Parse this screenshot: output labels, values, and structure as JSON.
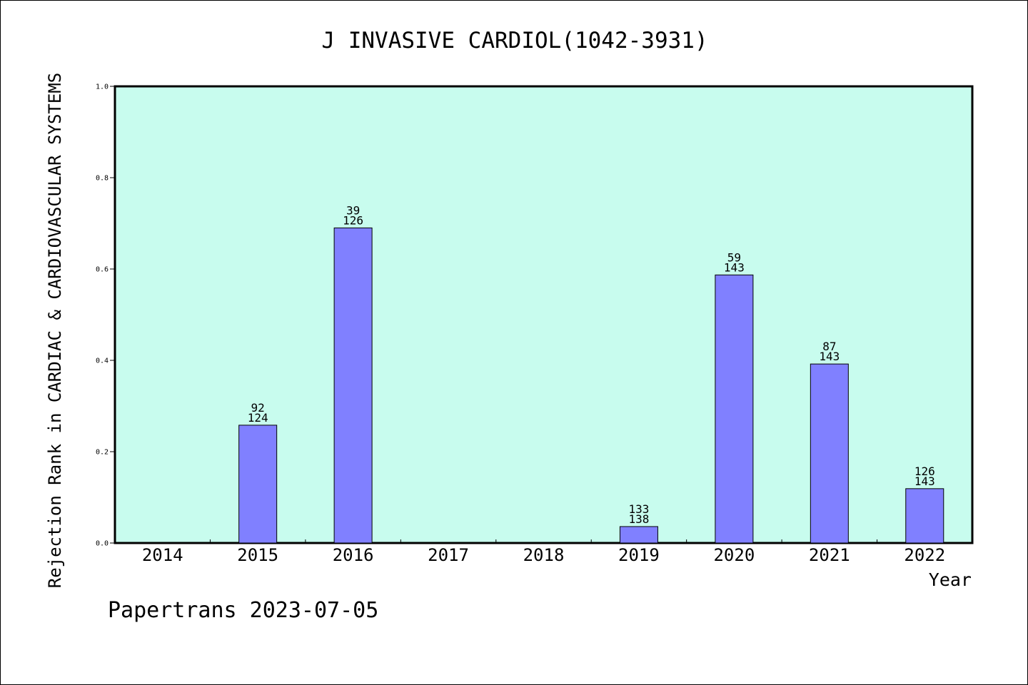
{
  "chart_data": {
    "type": "bar",
    "title": "J INVASIVE CARDIOL(1042-3931)",
    "xlabel": "Year",
    "ylabel": "Rejection Rank in CARDIAC & CARDIOVASCULAR SYSTEMS",
    "footer": "Papertrans 2023-07-05",
    "categories": [
      "2014",
      "2015",
      "2016",
      "2017",
      "2018",
      "2019",
      "2020",
      "2021",
      "2022"
    ],
    "values": [
      0,
      0.258,
      0.69,
      0,
      0,
      0.036,
      0.587,
      0.392,
      0.119
    ],
    "annotations": [
      null,
      {
        "top": "92",
        "bottom": "124"
      },
      {
        "top": "39",
        "bottom": "126"
      },
      null,
      null,
      {
        "top": "133",
        "bottom": "138"
      },
      {
        "top": "59",
        "bottom": "143"
      },
      {
        "top": "87",
        "bottom": "143"
      },
      {
        "top": "126",
        "bottom": "143"
      }
    ],
    "yticks": [
      "0.0",
      "0.2",
      "0.4",
      "0.6",
      "0.8",
      "1.0"
    ],
    "ylim": [
      0,
      1.0
    ],
    "grid": false,
    "colors": {
      "plot_background": "#c8fcee",
      "bar_fill": "#8080ff",
      "bar_stroke": "#000000"
    }
  }
}
